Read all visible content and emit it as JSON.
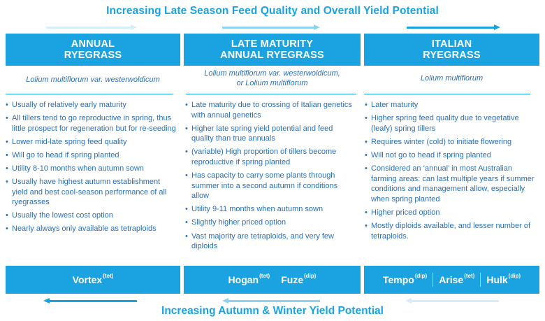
{
  "top_title": "Increasing Late Season Feed Quality and Overall Yield Potential",
  "bottom_title": "Increasing Autumn & Winter Yield Potential",
  "colors": {
    "accent": "#1aa3e0",
    "text": "#2a6fb6",
    "pale_arrow": "#bfe3f5",
    "mid_arrow": "#6cc4ec"
  },
  "columns": [
    {
      "header_line1": "ANNUAL",
      "header_line2": "RYEGRASS",
      "latin_line1": "Lolium multiflorum var. westerwoldicum",
      "latin_line2": "",
      "bullets": [
        "Usually of relatively early maturity",
        "All tillers tend to go reproductive in spring, thus little prospect for regeneration but for re-seeding",
        "Lower mid-late spring feed quality",
        "Will go to head if spring planted",
        "Utility 8-10 months when autumn sown",
        "Usually have highest autumn establishment yield and best cool-season performance of all ryegrasses",
        "Usually the lowest cost option",
        "Nearly always only available as tetraploids"
      ],
      "cultivars": [
        {
          "name": "Vortex",
          "ploidy": "(tet)"
        }
      ]
    },
    {
      "header_line1": "LATE MATURITY",
      "header_line2": "ANNUAL RYEGRASS",
      "latin_line1": "Lolium multiflorum var. westerwoldicum,",
      "latin_line2": "or Lolium multiflorum",
      "bullets": [
        "Late maturity due to crossing of Italian genetics with annual genetics",
        "Higher late spring yield potential and feed quality than true annuals",
        "(variable) High proportion of tillers become reproductive if spring planted",
        "Has capacity to carry some plants through summer into a second autumn if conditions allow",
        "Utility 9-11 months when autumn sown",
        "Slightly higher priced option",
        "Vast majority are tetraploids, and very few diploids"
      ],
      "cultivars": [
        {
          "name": "Hogan",
          "ploidy": "(tet)"
        },
        {
          "name": "Fuze",
          "ploidy": "(dip)"
        }
      ]
    },
    {
      "header_line1": "ITALIAN",
      "header_line2": "RYEGRASS",
      "latin_line1": "Lolium multiflorum",
      "latin_line2": "",
      "bullets": [
        "Later maturity",
        "Higher spring feed quality due to vegetative (leafy) spring tillers",
        "Requires winter (cold) to initiate flowering",
        "Will not go to head if spring planted",
        "Considered an ‘annual’ in most Australian farming areas: can last multiple years if summer conditions and management allow, especially when spring planted",
        "Higher priced option",
        "Mostly diploids available, and lesser number of tetraploids."
      ],
      "cultivars": [
        {
          "name": "Tempo",
          "ploidy": "(dip)"
        },
        {
          "name": "Arise",
          "ploidy": "(tet)"
        },
        {
          "name": "Hulk",
          "ploidy": "(dip)"
        }
      ]
    }
  ]
}
